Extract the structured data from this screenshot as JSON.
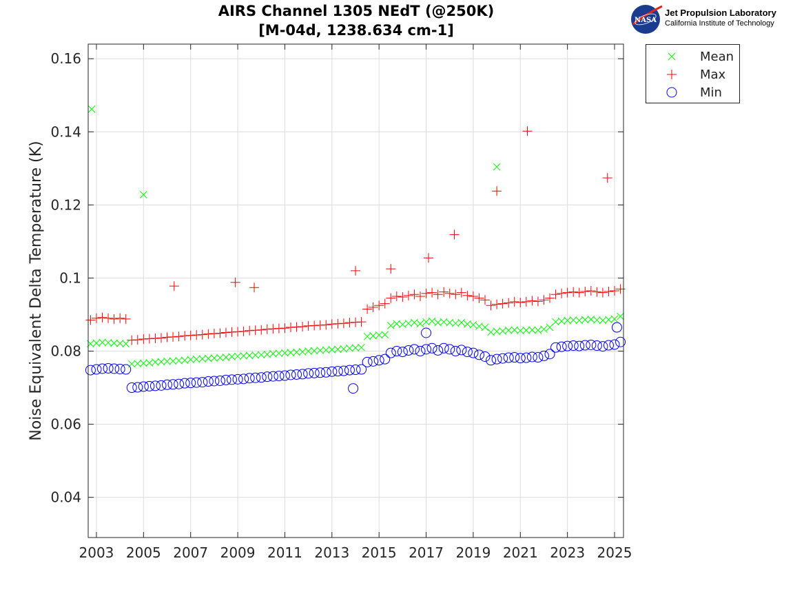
{
  "chart_data": {
    "type": "scatter",
    "title": "AIRS Channel 1305 NEdT (@250K)",
    "subtitle": "[M-04d, 1238.634 cm-1]",
    "xlabel": "",
    "ylabel": "Noise Equivalent Delta Temperature (K)",
    "xlim": [
      2002.65,
      2025.38
    ],
    "ylim": [
      0.029,
      0.164
    ],
    "xticks": [
      "2003",
      "2005",
      "2007",
      "2009",
      "2011",
      "2013",
      "2015",
      "2017",
      "2019",
      "2021",
      "2023",
      "2025"
    ],
    "yticks": [
      "0.04",
      "0.06",
      "0.08",
      "0.1",
      "0.12",
      "0.14",
      "0.16"
    ],
    "grid": true,
    "legend_placement": "outside-top-right",
    "x": [
      2002.75,
      2003.0,
      2003.25,
      2003.5,
      2003.75,
      2004.0,
      2004.25,
      2004.5,
      2004.75,
      2005.0,
      2005.25,
      2005.5,
      2005.75,
      2006.0,
      2006.25,
      2006.5,
      2006.75,
      2007.0,
      2007.25,
      2007.5,
      2007.75,
      2008.0,
      2008.25,
      2008.5,
      2008.75,
      2009.0,
      2009.25,
      2009.5,
      2009.75,
      2010.0,
      2010.25,
      2010.5,
      2010.75,
      2011.0,
      2011.25,
      2011.5,
      2011.75,
      2012.0,
      2012.25,
      2012.5,
      2012.75,
      2013.0,
      2013.25,
      2013.5,
      2013.75,
      2014.0,
      2014.25,
      2014.5,
      2014.75,
      2015.0,
      2015.25,
      2015.5,
      2015.75,
      2016.0,
      2016.25,
      2016.5,
      2016.75,
      2017.0,
      2017.25,
      2017.5,
      2017.75,
      2018.0,
      2018.25,
      2018.5,
      2018.75,
      2019.0,
      2019.25,
      2019.5,
      2019.75,
      2020.0,
      2020.25,
      2020.5,
      2020.75,
      2021.0,
      2021.25,
      2021.5,
      2021.75,
      2022.0,
      2022.25,
      2022.5,
      2022.75,
      2023.0,
      2023.25,
      2023.5,
      2023.75,
      2024.0,
      2024.25,
      2024.5,
      2024.75,
      2025.0,
      2025.25
    ],
    "series": [
      {
        "name": "Mean",
        "marker": "x",
        "color": "#00ff00",
        "values": [
          0.082,
          0.0822,
          0.0824,
          0.0823,
          0.0822,
          0.0821,
          0.082,
          0.0765,
          0.0766,
          0.0767,
          0.0768,
          0.077,
          0.0771,
          0.0772,
          0.0773,
          0.0774,
          0.0775,
          0.0777,
          0.0778,
          0.0779,
          0.078,
          0.0781,
          0.0782,
          0.0783,
          0.0785,
          0.0786,
          0.0787,
          0.0788,
          0.0789,
          0.079,
          0.0791,
          0.0793,
          0.0794,
          0.0795,
          0.0796,
          0.0797,
          0.0798,
          0.08,
          0.0801,
          0.0802,
          0.0803,
          0.0804,
          0.0805,
          0.0806,
          0.0808,
          0.0809,
          0.081,
          0.084,
          0.0842,
          0.0844,
          0.0845,
          0.087,
          0.0875,
          0.0873,
          0.0876,
          0.0878,
          0.0875,
          0.088,
          0.0882,
          0.0878,
          0.088,
          0.0878,
          0.0876,
          0.0878,
          0.0874,
          0.0872,
          0.0868,
          0.0865,
          0.0852,
          0.0854,
          0.0855,
          0.0857,
          0.0858,
          0.0856,
          0.0857,
          0.0858,
          0.0857,
          0.086,
          0.0865,
          0.088,
          0.0882,
          0.0884,
          0.0885,
          0.0884,
          0.0886,
          0.0887,
          0.0885,
          0.0884,
          0.0886,
          0.0888,
          0.0895
        ],
        "outliers": [
          [
            2002.8,
            0.1462
          ],
          [
            2005.0,
            0.1228
          ],
          [
            2020.0,
            0.1304
          ]
        ]
      },
      {
        "name": "Max",
        "marker": "+",
        "color": "#ff0000",
        "values": [
          0.0885,
          0.089,
          0.0892,
          0.089,
          0.0888,
          0.089,
          0.0888,
          0.083,
          0.0831,
          0.0833,
          0.0834,
          0.0835,
          0.0836,
          0.0838,
          0.0839,
          0.084,
          0.0842,
          0.0843,
          0.0844,
          0.0845,
          0.0847,
          0.0848,
          0.0849,
          0.0851,
          0.0852,
          0.0853,
          0.0854,
          0.0856,
          0.0857,
          0.0858,
          0.086,
          0.0861,
          0.0862,
          0.0863,
          0.0865,
          0.0866,
          0.0867,
          0.0869,
          0.087,
          0.0871,
          0.0872,
          0.0874,
          0.0875,
          0.0876,
          0.0878,
          0.0879,
          0.088,
          0.0915,
          0.092,
          0.0925,
          0.093,
          0.0945,
          0.095,
          0.0948,
          0.0952,
          0.0955,
          0.095,
          0.0958,
          0.096,
          0.0955,
          0.0962,
          0.0958,
          0.0955,
          0.096,
          0.0952,
          0.095,
          0.0945,
          0.094,
          0.0925,
          0.0928,
          0.093,
          0.0932,
          0.0935,
          0.0933,
          0.0935,
          0.0938,
          0.0936,
          0.094,
          0.0945,
          0.0955,
          0.0958,
          0.096,
          0.0962,
          0.096,
          0.0963,
          0.0965,
          0.0962,
          0.096,
          0.0963,
          0.0965,
          0.097
        ],
        "outliers": [
          [
            2021.3,
            0.1402
          ],
          [
            2024.7,
            0.1274
          ],
          [
            2020.0,
            0.1238
          ],
          [
            2018.2,
            0.1119
          ],
          [
            2014.0,
            0.102
          ],
          [
            2006.3,
            0.0978
          ],
          [
            2008.9,
            0.0988
          ],
          [
            2009.7,
            0.0974
          ],
          [
            2017.1,
            0.1055
          ],
          [
            2015.5,
            0.1025
          ]
        ]
      },
      {
        "name": "Min",
        "marker": "o",
        "color": "#0000ff",
        "values": [
          0.0748,
          0.075,
          0.0752,
          0.0753,
          0.0752,
          0.0751,
          0.075,
          0.07,
          0.0701,
          0.0703,
          0.0704,
          0.0705,
          0.0706,
          0.0708,
          0.0709,
          0.071,
          0.0712,
          0.0713,
          0.0714,
          0.0715,
          0.0717,
          0.0718,
          0.0719,
          0.0721,
          0.0722,
          0.0723,
          0.0724,
          0.0726,
          0.0727,
          0.0728,
          0.073,
          0.0731,
          0.0732,
          0.0733,
          0.0735,
          0.0736,
          0.0737,
          0.0739,
          0.074,
          0.0741,
          0.0742,
          0.0744,
          0.0745,
          0.0746,
          0.0748,
          0.0749,
          0.075,
          0.077,
          0.0772,
          0.0775,
          0.0778,
          0.0795,
          0.08,
          0.0798,
          0.0802,
          0.0805,
          0.08,
          0.0805,
          0.0808,
          0.0802,
          0.0808,
          0.0805,
          0.08,
          0.0803,
          0.0798,
          0.0795,
          0.079,
          0.0785,
          0.0775,
          0.0778,
          0.078,
          0.0782,
          0.0783,
          0.0781,
          0.0782,
          0.0784,
          0.0783,
          0.0787,
          0.0792,
          0.081,
          0.0812,
          0.0814,
          0.0815,
          0.0814,
          0.0816,
          0.0817,
          0.0815,
          0.0813,
          0.0816,
          0.0818,
          0.0825
        ],
        "outliers": [
          [
            2013.9,
            0.0698
          ],
          [
            2017.0,
            0.085
          ],
          [
            2025.1,
            0.0865
          ]
        ]
      }
    ]
  },
  "logo": {
    "line1": "Jet Propulsion Laboratory",
    "line2": "California Institute of Technology",
    "badge": "NASA"
  }
}
